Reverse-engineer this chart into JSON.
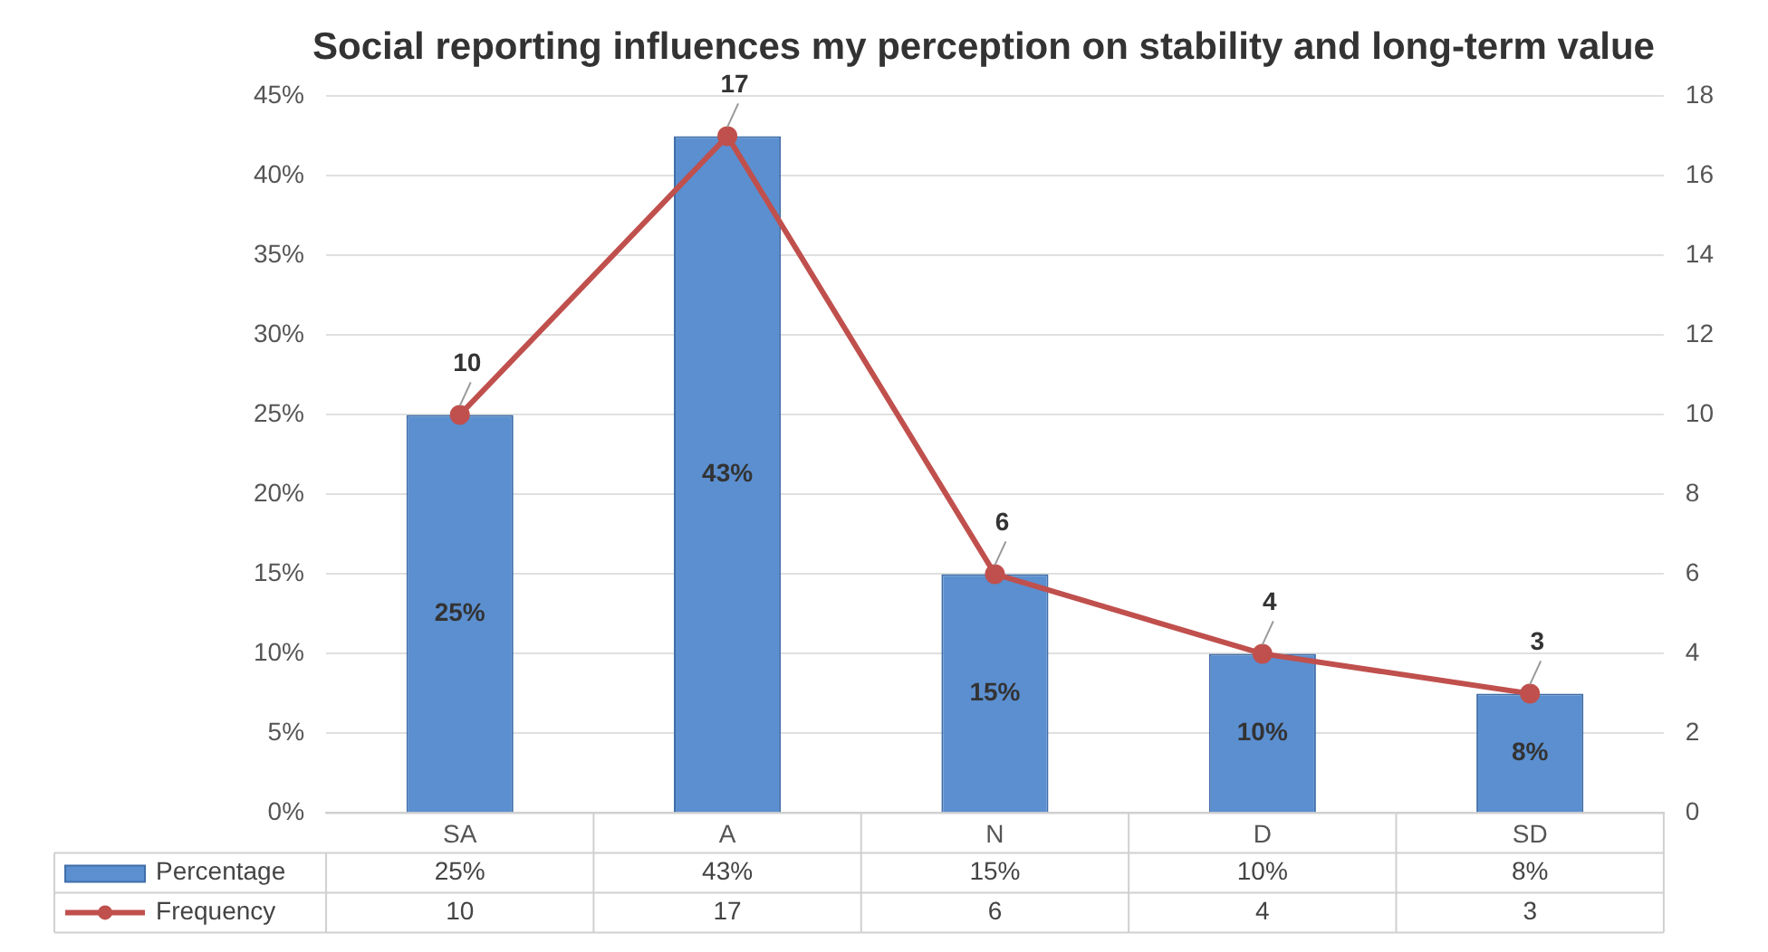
{
  "chart_data": {
    "type": "bar",
    "title": "Social reporting influences my perception on stability and long-term value",
    "categories": [
      "SA",
      "A",
      "N",
      "D",
      "SD"
    ],
    "series": [
      {
        "name": "Percentage",
        "color": "#5b8fd0",
        "values": [
          25,
          42.5,
          15,
          10,
          7.5
        ],
        "value_labels": [
          "25%",
          "43%",
          "15%",
          "10%",
          "8%"
        ]
      },
      {
        "name": "Frequency",
        "type": "line",
        "axis": "y2",
        "color": "#c0504d",
        "values": [
          10,
          17,
          6,
          4,
          3
        ],
        "value_labels": [
          "10",
          "17",
          "6",
          "4",
          "3"
        ]
      }
    ],
    "ylim": [
      0,
      45
    ],
    "yticks": [
      {
        "value": 0,
        "label": "0%"
      },
      {
        "value": 5,
        "label": "5%"
      },
      {
        "value": 10,
        "label": "10%"
      },
      {
        "value": 15,
        "label": "15%"
      },
      {
        "value": 20,
        "label": "20%"
      },
      {
        "value": 25,
        "label": "25%"
      },
      {
        "value": 30,
        "label": "30%"
      },
      {
        "value": 35,
        "label": "35%"
      },
      {
        "value": 40,
        "label": "40%"
      },
      {
        "value": 45,
        "label": "45%"
      }
    ],
    "y2lim": [
      0,
      18
    ],
    "y2ticks": [
      0,
      2,
      4,
      6,
      8,
      10,
      12,
      14,
      16,
      18
    ],
    "grid": "y",
    "legend": "bottom",
    "marker": "circle"
  }
}
